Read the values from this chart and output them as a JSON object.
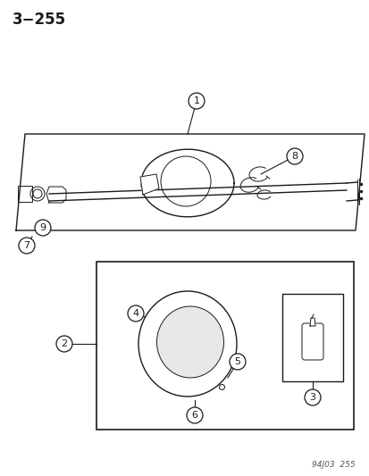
{
  "title": "3−255",
  "footer": "94J03  255",
  "bg_color": "#ffffff",
  "line_color": "#1a1a1a",
  "label_color": "#1a1a1a"
}
